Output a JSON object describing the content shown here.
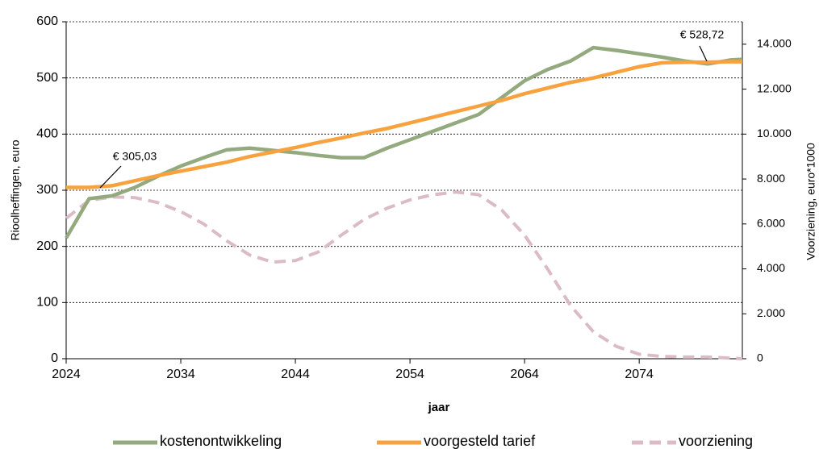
{
  "chart_data": {
    "type": "line",
    "x_label": "jaar",
    "y_label": "Rioolheffingen, euro",
    "y2_label": "Voorziening, euro*1000",
    "x": [
      2024,
      2026,
      2028,
      2030,
      2032,
      2034,
      2036,
      2038,
      2040,
      2042,
      2044,
      2046,
      2048,
      2050,
      2052,
      2054,
      2056,
      2058,
      2060,
      2062,
      2064,
      2066,
      2068,
      2070,
      2072,
      2074,
      2076,
      2078,
      2080,
      2082,
      2083
    ],
    "series": [
      {
        "name": "kostenontwikkeling",
        "color": "#93a97e",
        "style": "solid",
        "values": [
          215,
          285,
          290,
          305,
          325,
          343,
          358,
          372,
          375,
          371,
          367,
          362,
          358,
          358,
          375,
          390,
          405,
          420,
          435,
          465,
          495,
          515,
          530,
          554,
          549,
          543,
          537,
          530,
          525,
          532,
          533
        ]
      },
      {
        "name": "voorgesteld tarief",
        "color": "#f7a23e",
        "style": "solid",
        "values": [
          305.03,
          305,
          308,
          317,
          326,
          334,
          342,
          350,
          360,
          368,
          376,
          385,
          393,
          402,
          410,
          420,
          430,
          440,
          450,
          460,
          472,
          482,
          492,
          500,
          510,
          520,
          527,
          528,
          528,
          529,
          528.72
        ]
      },
      {
        "name": "voorziening",
        "color": "#dbbcc4",
        "style": "dashed",
        "axis": "y2",
        "values": [
          6250,
          7050,
          7200,
          7170,
          6950,
          6550,
          6000,
          5250,
          4620,
          4300,
          4370,
          4750,
          5500,
          6200,
          6700,
          7070,
          7300,
          7420,
          7300,
          6620,
          5500,
          4000,
          2370,
          1200,
          550,
          200,
          100,
          75,
          75,
          25,
          0
        ]
      }
    ],
    "annotations": [
      {
        "text": "€ 305,03"
      },
      {
        "text": "€ 528,72"
      }
    ],
    "xlim": [
      2024,
      2083
    ],
    "xticks": [
      2024,
      2034,
      2044,
      2054,
      2064,
      2074
    ],
    "ylim": [
      0,
      600
    ],
    "yticks": [
      0,
      100,
      200,
      300,
      400,
      500,
      600
    ],
    "y2lim": [
      0,
      15000
    ],
    "y2ticks": [
      0,
      {
        "value": 2000,
        "label": "2.000"
      },
      {
        "value": 4000,
        "label": "4.000"
      },
      {
        "value": 6000,
        "label": "6.000"
      },
      {
        "value": 8000,
        "label": "8.000"
      },
      {
        "value": 10000,
        "label": "10.000"
      },
      {
        "value": 12000,
        "label": "12.000"
      },
      {
        "value": 14000,
        "label": "14.000"
      }
    ],
    "grid": true,
    "legend": "bottom"
  }
}
